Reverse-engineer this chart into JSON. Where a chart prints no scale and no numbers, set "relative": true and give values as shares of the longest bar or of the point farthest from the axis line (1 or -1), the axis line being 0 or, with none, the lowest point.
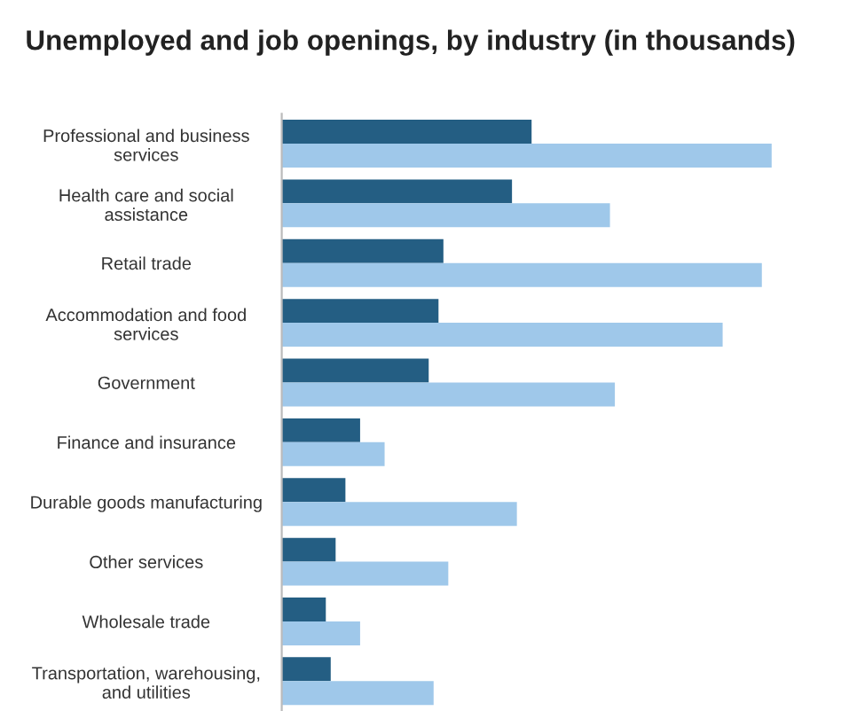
{
  "chart_data": {
    "type": "bar",
    "orientation": "horizontal",
    "relative": true,
    "title": "Unemployed and job openings, by industry (in thousands)",
    "categories": [
      "Professional and business\nservices",
      "Health care and social\nassistance",
      "Retail trade",
      "Accommodation and food\nservices",
      "Government",
      "Finance and insurance",
      "Durable goods manufacturing",
      "Other services",
      "Wholesale trade",
      "Transportation, warehousing,\nand utilities"
    ],
    "series": [
      {
        "color": "#245e83",
        "values": [
          0.51,
          0.47,
          0.33,
          0.32,
          0.3,
          0.16,
          0.13,
          0.11,
          0.09,
          0.1
        ]
      },
      {
        "color": "#9fc8ea",
        "values": [
          1.0,
          0.67,
          0.98,
          0.9,
          0.68,
          0.21,
          0.48,
          0.34,
          0.16,
          0.31
        ]
      }
    ],
    "grid": false,
    "legend": false
  }
}
